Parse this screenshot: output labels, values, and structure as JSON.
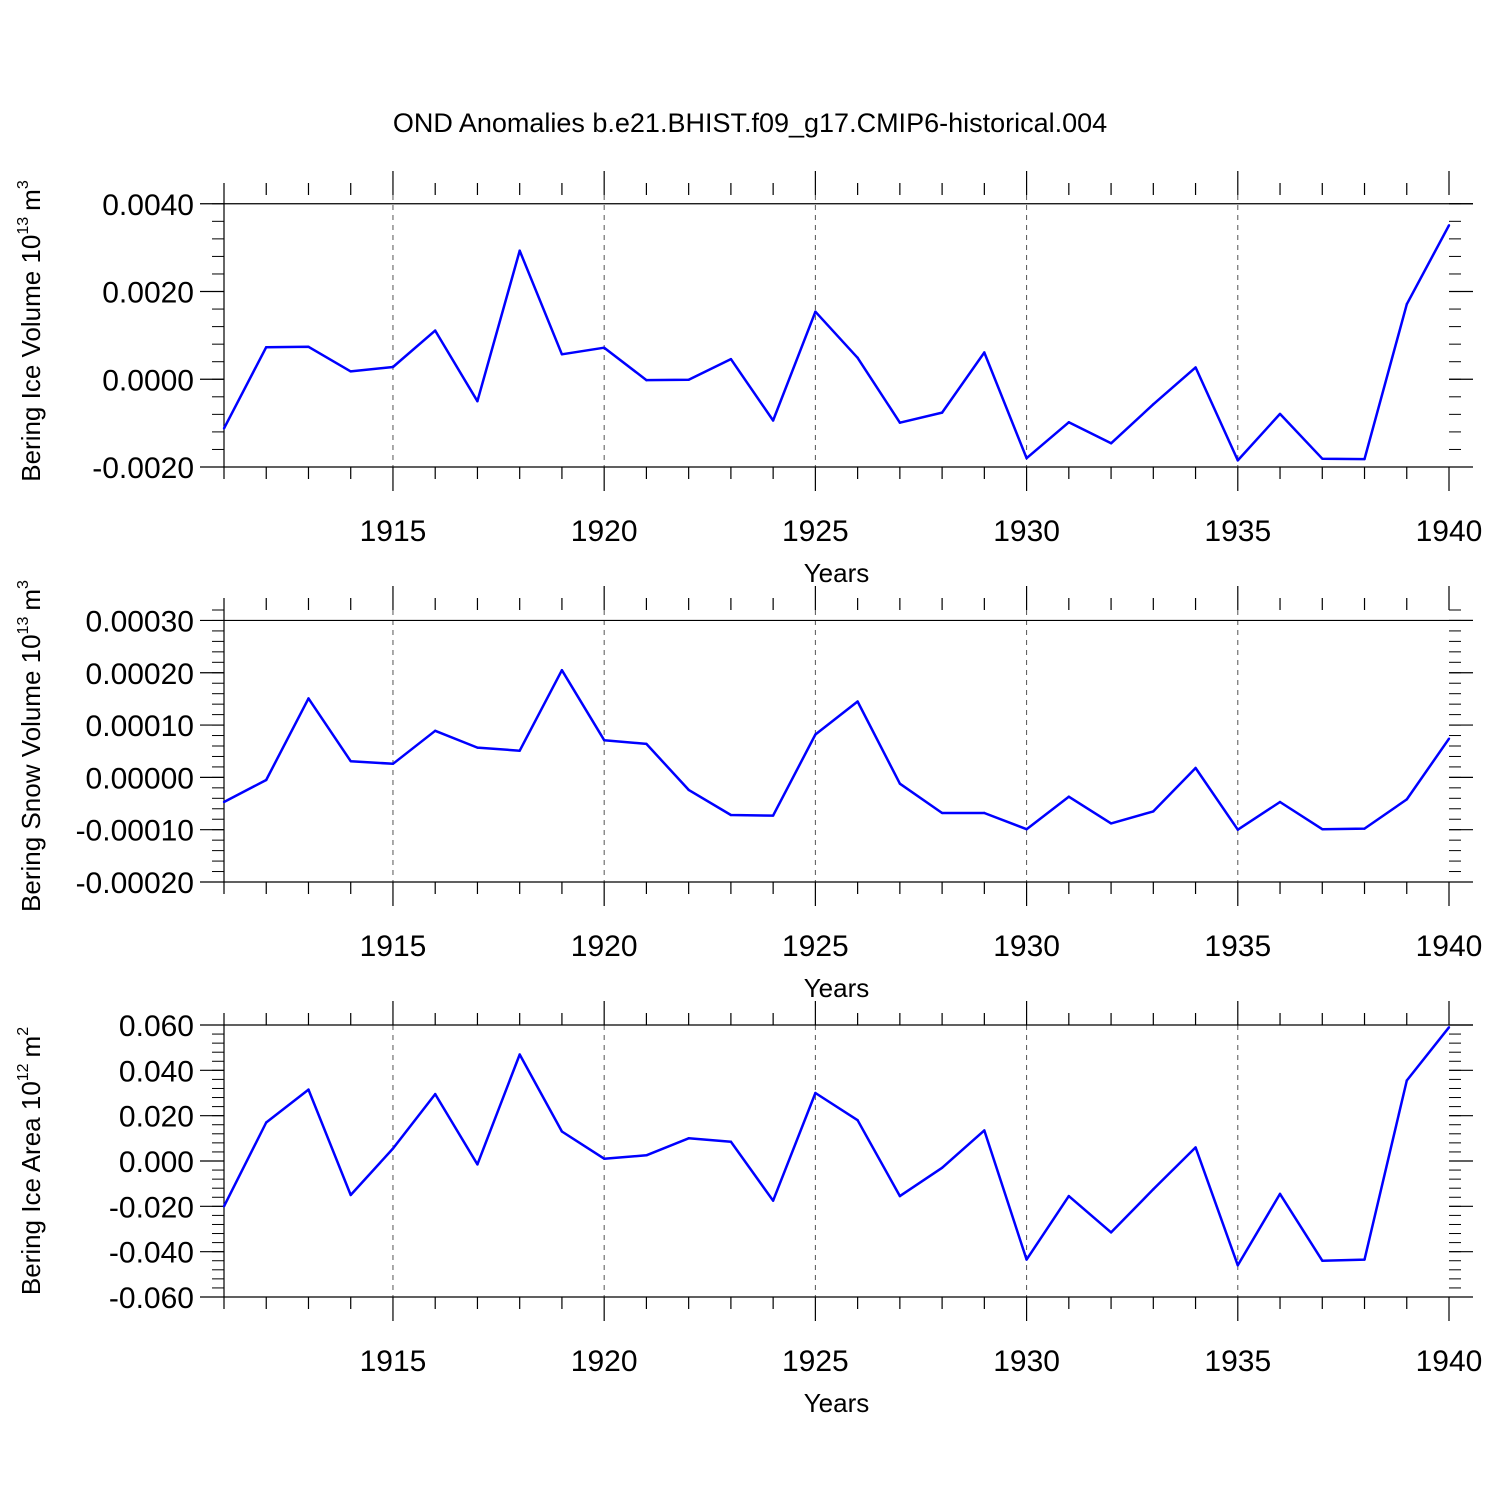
{
  "title": "OND Anomalies b.e21.BHIST.f09_g17.CMIP6-historical.004",
  "line_color": "#0000ff",
  "chart_data": [
    {
      "type": "line",
      "ylabel": "Bering Ice Volume 10",
      "ylabel_exp": "13",
      "ylabel_unit": "m",
      "ylabel_unit_exp": "3",
      "xlabel": "Years",
      "xlim": [
        1911,
        1940
      ],
      "ylim": [
        -0.002,
        0.0042
      ],
      "yticks": [
        -0.002,
        0.0,
        0.002,
        0.004
      ],
      "yticklabels": [
        "-0.0020",
        "0.0000",
        "0.0020",
        "0.0040"
      ],
      "xticks": [
        1915,
        1920,
        1925,
        1930,
        1935,
        1940
      ],
      "xticklabels": [
        "1915",
        "1920",
        "1925",
        "1930",
        "1935",
        "1940"
      ],
      "x": [
        1911,
        1912,
        1913,
        1914,
        1915,
        1916,
        1917,
        1918,
        1919,
        1920,
        1921,
        1922,
        1923,
        1924,
        1925,
        1926,
        1927,
        1928,
        1929,
        1930,
        1931,
        1932,
        1933,
        1934,
        1935,
        1936,
        1937,
        1938,
        1939,
        1940
      ],
      "values": [
        -0.00112,
        0.00073,
        0.00074,
        0.00018,
        0.00028,
        0.00111,
        -0.0005,
        0.00293,
        0.00057,
        0.00072,
        -2e-05,
        -1e-05,
        0.00046,
        -0.00094,
        0.00154,
        0.00049,
        -0.00099,
        -0.00076,
        0.00061,
        -0.0018,
        -0.00098,
        -0.00146,
        -0.00057,
        0.00027,
        -0.00185,
        -0.00079,
        -0.00181,
        -0.00182,
        0.00171,
        0.00351
      ]
    },
    {
      "type": "line",
      "ylabel": "Bering Snow Volume 10",
      "ylabel_exp": "13",
      "ylabel_unit": "m",
      "ylabel_unit_exp": "3",
      "xlabel": "Years",
      "xlim": [
        1911,
        1940
      ],
      "ylim": [
        -0.0002,
        0.00032
      ],
      "yticks": [
        -0.0002,
        -0.0001,
        0.0,
        0.0001,
        0.0002,
        0.0003
      ],
      "yticklabels": [
        "-0.00020",
        "-0.00010",
        "0.00000",
        "0.00010",
        "0.00020",
        "0.00030"
      ],
      "xticks": [
        1915,
        1920,
        1925,
        1930,
        1935,
        1940
      ],
      "xticklabels": [
        "1915",
        "1920",
        "1925",
        "1930",
        "1935",
        "1940"
      ],
      "x": [
        1911,
        1912,
        1913,
        1914,
        1915,
        1916,
        1917,
        1918,
        1919,
        1920,
        1921,
        1922,
        1923,
        1924,
        1925,
        1926,
        1927,
        1928,
        1929,
        1930,
        1931,
        1932,
        1933,
        1934,
        1935,
        1936,
        1937,
        1938,
        1939,
        1940
      ],
      "values": [
        -4.7e-05,
        -5e-06,
        0.000151,
        3.1e-05,
        2.6e-05,
        8.9e-05,
        5.7e-05,
        5.1e-05,
        0.000205,
        7.1e-05,
        6.4e-05,
        -2.4e-05,
        -7.2e-05,
        -7.3e-05,
        8.2e-05,
        0.000145,
        -1.2e-05,
        -6.8e-05,
        -6.8e-05,
        -9.9e-05,
        -3.7e-05,
        -8.8e-05,
        -6.5e-05,
        1.8e-05,
        -0.0001,
        -4.7e-05,
        -9.9e-05,
        -9.8e-05,
        -4.2e-05,
        7.4e-05
      ]
    },
    {
      "type": "line",
      "ylabel": "Bering Ice Area 10",
      "ylabel_exp": "12",
      "ylabel_unit": "m",
      "ylabel_unit_exp": "2",
      "xlabel": "Years",
      "xlim": [
        1911,
        1940
      ],
      "ylim": [
        -0.06,
        0.06
      ],
      "yticks": [
        -0.06,
        -0.04,
        -0.02,
        0.0,
        0.02,
        0.04,
        0.06
      ],
      "yticklabels": [
        "-0.060",
        "-0.040",
        "-0.020",
        "0.000",
        "0.020",
        "0.040",
        "0.060"
      ],
      "xticks": [
        1915,
        1920,
        1925,
        1930,
        1935,
        1940
      ],
      "xticklabels": [
        "1915",
        "1920",
        "1925",
        "1930",
        "1935",
        "1940"
      ],
      "x": [
        1911,
        1912,
        1913,
        1914,
        1915,
        1916,
        1917,
        1918,
        1919,
        1920,
        1921,
        1922,
        1923,
        1924,
        1925,
        1926,
        1927,
        1928,
        1929,
        1930,
        1931,
        1932,
        1933,
        1934,
        1935,
        1936,
        1937,
        1938,
        1939,
        1940
      ],
      "values": [
        -0.02,
        0.017,
        0.0315,
        -0.015,
        0.0055,
        0.0295,
        -0.0015,
        0.047,
        0.013,
        0.001,
        0.0025,
        0.01,
        0.0085,
        -0.0175,
        0.03,
        0.018,
        -0.0155,
        -0.003,
        0.0135,
        -0.0435,
        -0.0155,
        -0.0315,
        -0.0125,
        0.006,
        -0.046,
        -0.0145,
        -0.044,
        -0.0435,
        0.0355,
        0.059
      ]
    }
  ]
}
